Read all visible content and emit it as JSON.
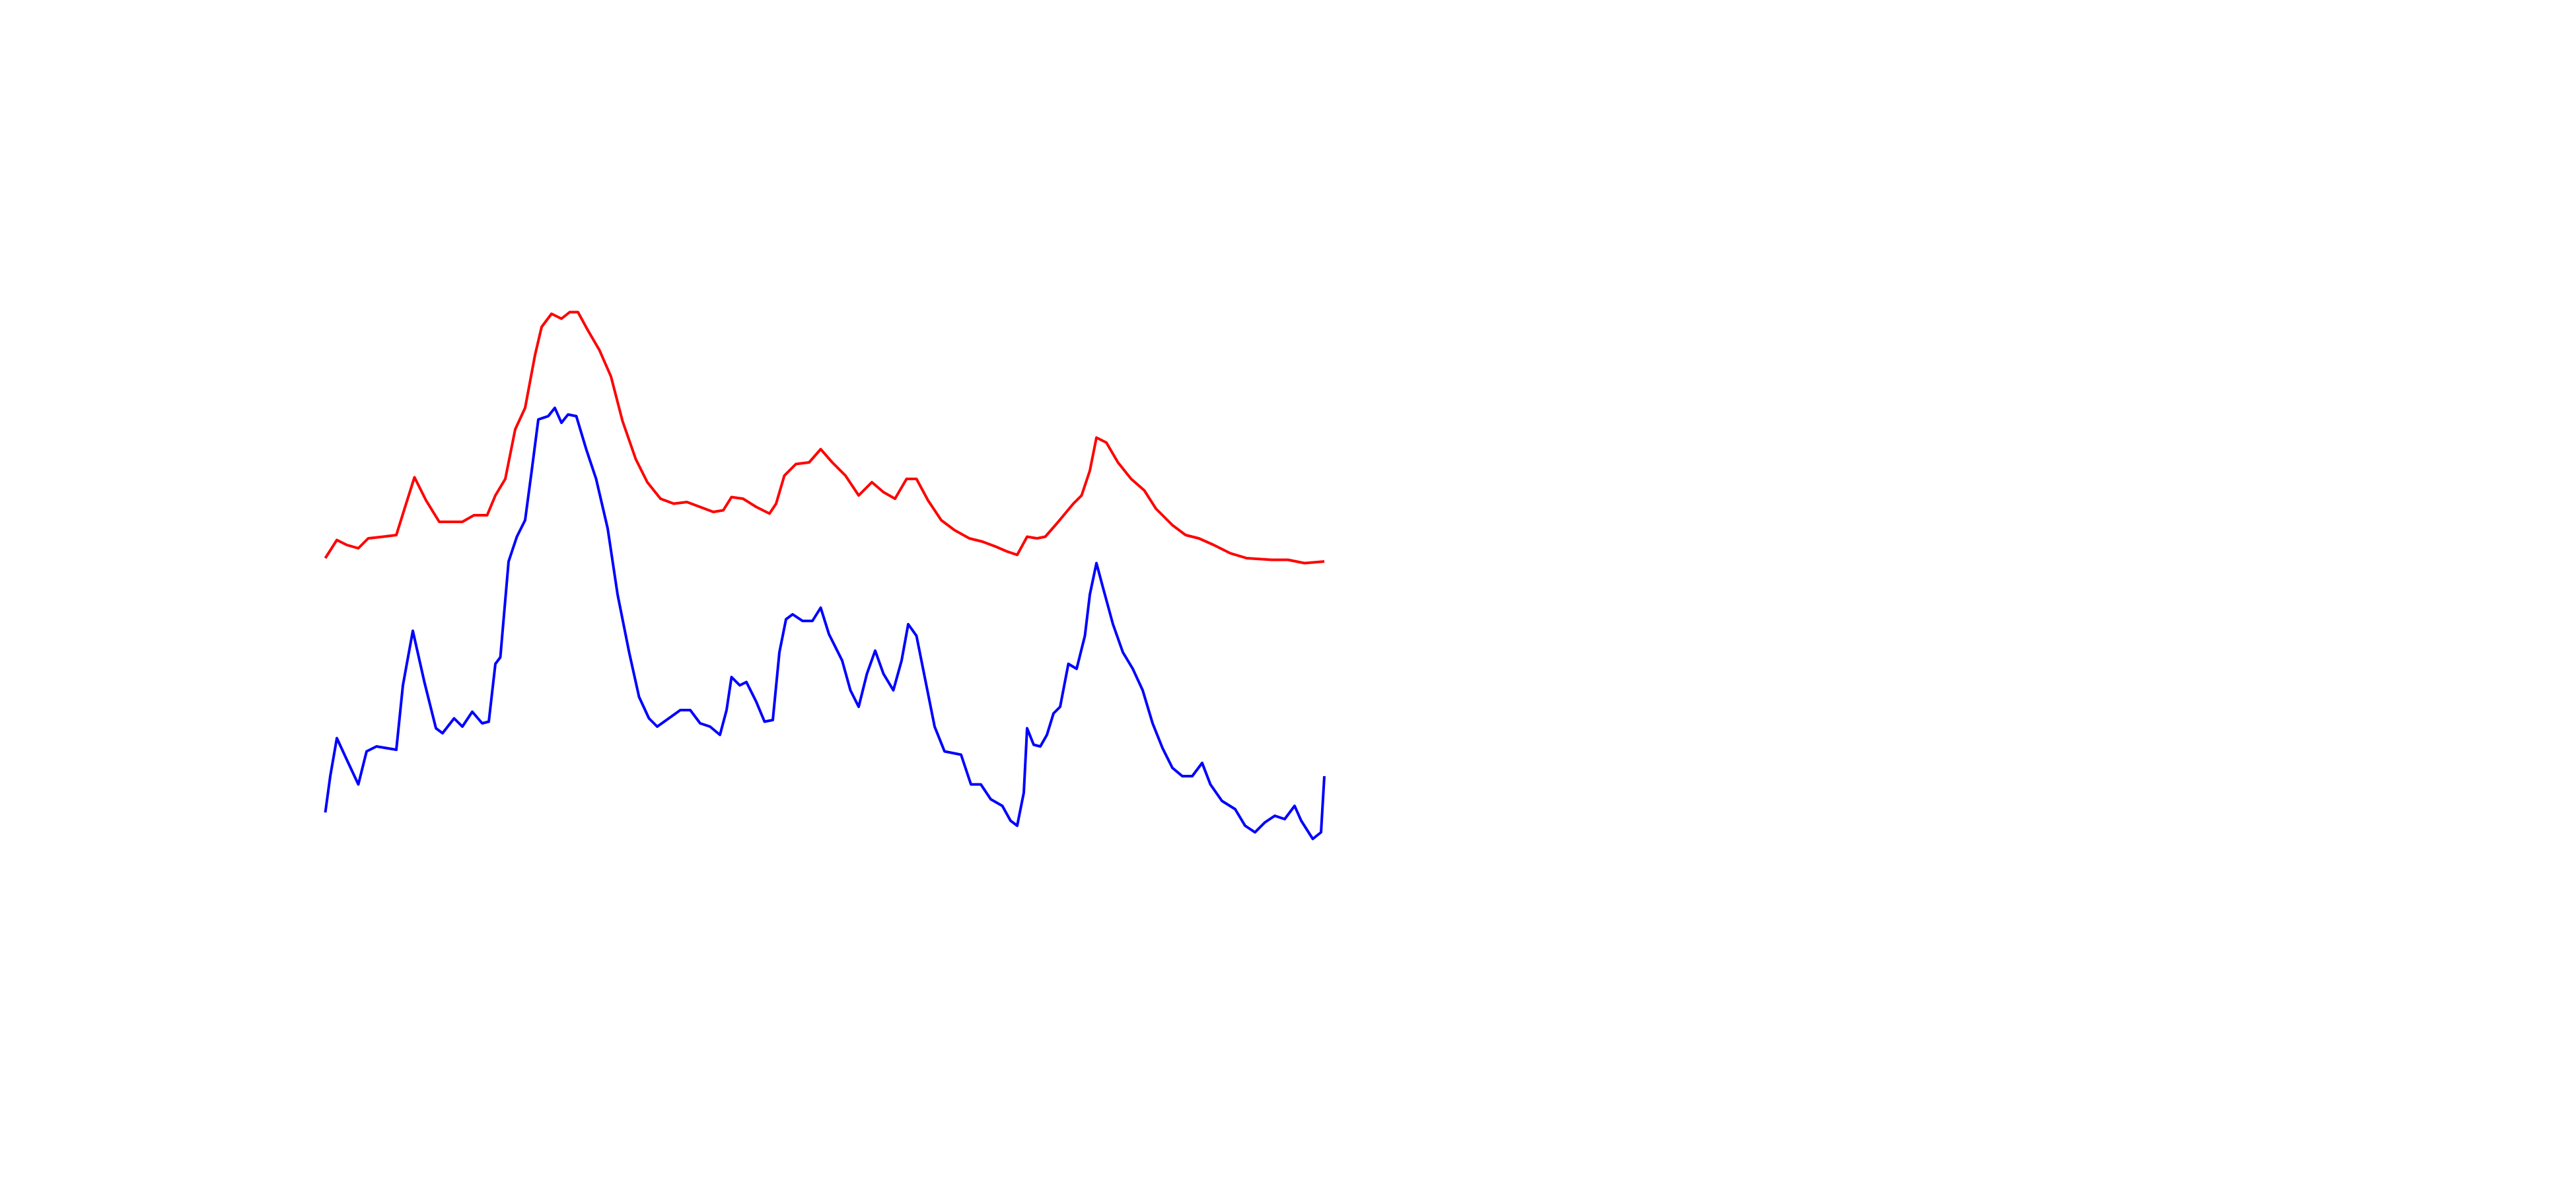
{
  "chart_data": {
    "type": "line",
    "xlim": [
      0,
      1560
    ],
    "ylim": [
      0,
      720
    ],
    "series": [
      {
        "color": "#ff0000",
        "x": [
          197,
          204,
          210,
          217,
          223,
          232,
          240,
          245,
          251,
          258,
          266,
          272,
          280,
          287,
          295,
          300,
          306,
          312,
          318,
          324,
          328,
          334,
          340,
          345,
          350,
          356,
          363,
          370,
          377,
          385,
          392,
          400,
          408,
          416,
          424,
          432,
          438,
          443,
          450,
          458,
          466,
          470,
          475,
          482,
          490,
          497,
          504,
          512,
          520,
          528,
          535,
          542,
          549,
          555,
          562,
          570,
          578,
          587,
          595,
          603,
          610,
          616,
          622,
          628,
          633,
          640,
          645,
          650,
          655,
          660,
          664,
          670,
          677,
          685,
          693,
          700,
          710,
          718,
          726,
          735,
          745,
          755,
          770,
          780,
          790,
          802
        ],
        "values": [
          382,
          393,
          390,
          388,
          394,
          395,
          396,
          412,
          431,
          417,
          404,
          404,
          404,
          408,
          408,
          420,
          430,
          460,
          473,
          505,
          522,
          530,
          527,
          531,
          531,
          520,
          508,
          492,
          465,
          442,
          428,
          418,
          415,
          416,
          413,
          410,
          411,
          419,
          418,
          413,
          409,
          415,
          432,
          439,
          440,
          448,
          440,
          432,
          420,
          428,
          422,
          418,
          430,
          430,
          417,
          405,
          399,
          394,
          392,
          389,
          386,
          384,
          395,
          394,
          395,
          403,
          409,
          415,
          420,
          435,
          455,
          452,
          440,
          430,
          423,
          412,
          402,
          396,
          394,
          390,
          385,
          382,
          381,
          381,
          379,
          380
        ]
      },
      {
        "color": "#0000ff",
        "x": [
          197,
          200,
          204,
          210,
          217,
          222,
          228,
          234,
          240,
          244,
          250,
          257,
          264,
          268,
          275,
          280,
          286,
          292,
          296,
          300,
          303,
          308,
          313,
          318,
          322,
          326,
          332,
          336,
          340,
          344,
          349,
          355,
          361,
          368,
          374,
          381,
          387,
          393,
          398,
          405,
          412,
          418,
          424,
          430,
          436,
          440,
          443,
          448,
          452,
          458,
          463,
          468,
          472,
          476,
          480,
          486,
          492,
          497,
          502,
          510,
          515,
          520,
          525,
          530,
          535,
          541,
          546,
          550,
          555,
          560,
          566,
          572,
          577,
          582,
          588,
          594,
          600,
          607,
          612,
          616,
          620,
          622,
          626,
          630,
          634,
          638,
          642,
          647,
          652,
          657,
          660,
          664,
          668,
          674,
          680,
          686,
          692,
          698,
          704,
          710,
          716,
          722,
          728,
          733,
          740,
          748,
          754,
          760,
          766,
          772,
          778,
          784,
          788,
          795,
          800,
          802
        ],
        "values": [
          228,
          250,
          273,
          260,
          245,
          265,
          268,
          267,
          266,
          305,
          338,
          307,
          279,
          276,
          285,
          280,
          289,
          282,
          283,
          318,
          322,
          380,
          395,
          405,
          435,
          466,
          468,
          473,
          464,
          469,
          468,
          448,
          430,
          400,
          360,
          325,
          298,
          285,
          280,
          285,
          290,
          290,
          282,
          280,
          275,
          290,
          310,
          305,
          307,
          295,
          283,
          284,
          325,
          345,
          348,
          344,
          344,
          352,
          336,
          320,
          302,
          292,
          312,
          326,
          312,
          302,
          320,
          342,
          335,
          310,
          280,
          265,
          264,
          263,
          245,
          245,
          236,
          232,
          223,
          220,
          240,
          279,
          269,
          268,
          275,
          288,
          292,
          318,
          315,
          335,
          360,
          379,
          364,
          342,
          325,
          315,
          302,
          282,
          267,
          255,
          250,
          250,
          258,
          245,
          235,
          230,
          220,
          216,
          222,
          226,
          224,
          232,
          223,
          212,
          216,
          250
        ]
      }
    ]
  }
}
